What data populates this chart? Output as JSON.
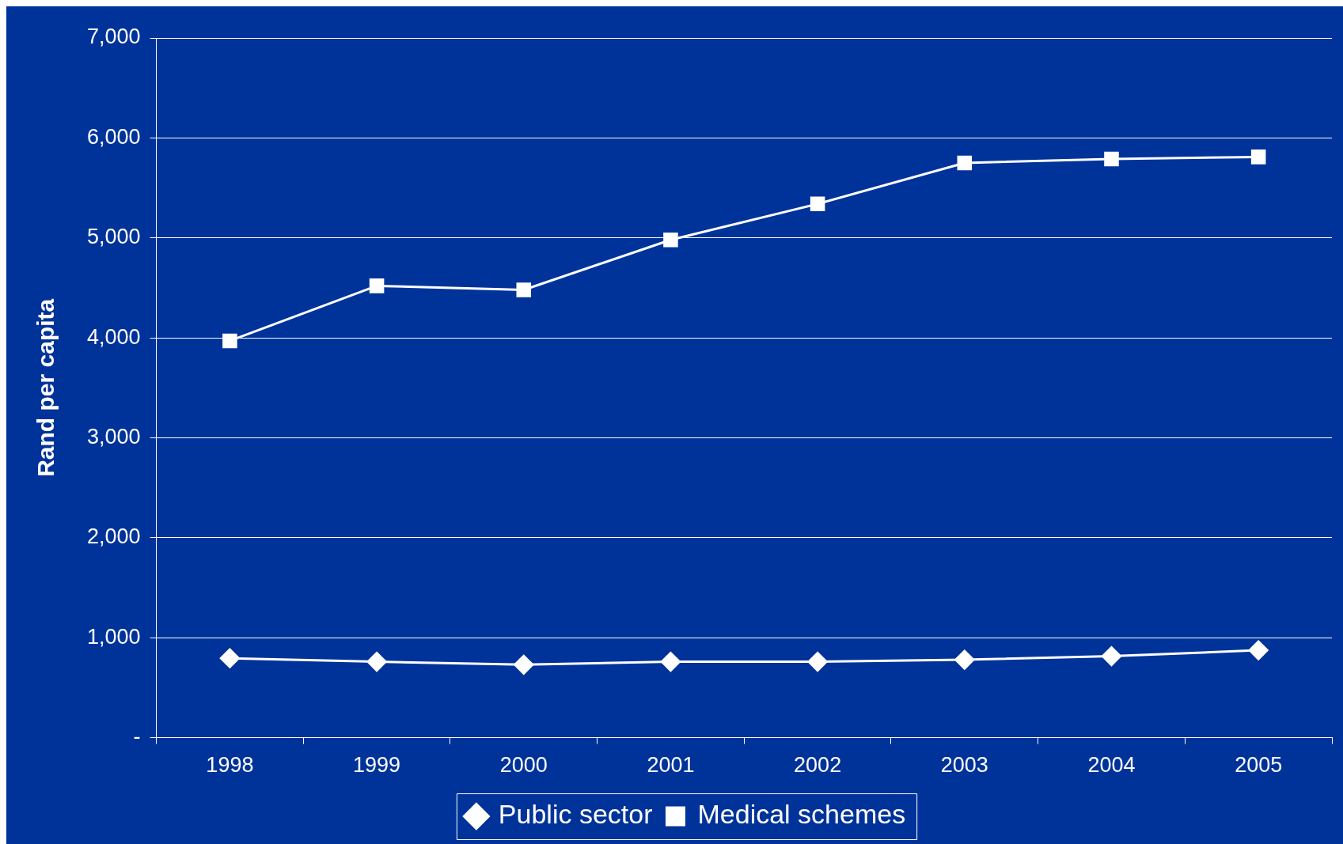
{
  "chart_data": {
    "type": "line",
    "ylabel": "Rand per capita",
    "categories": [
      "1998",
      "1999",
      "2000",
      "2001",
      "2002",
      "2003",
      "2004",
      "2005"
    ],
    "series": [
      {
        "name": "Public sector",
        "color": "#ffffff",
        "marker": "diamond",
        "values": [
          795,
          760,
          730,
          760,
          760,
          780,
          815,
          875
        ]
      },
      {
        "name": "Medical schemes",
        "color": "#ffffff",
        "marker": "square",
        "values": [
          3970,
          4520,
          4480,
          4980,
          5340,
          5750,
          5790,
          5810
        ]
      }
    ],
    "ylim": [
      0,
      7000
    ],
    "yticks": [
      {
        "value": 0,
        "label": "-"
      },
      {
        "value": 1000,
        "label": "1,000"
      },
      {
        "value": 2000,
        "label": "2,000"
      },
      {
        "value": 3000,
        "label": "3,000"
      },
      {
        "value": 4000,
        "label": "4,000"
      },
      {
        "value": 5000,
        "label": "5,000"
      },
      {
        "value": 6000,
        "label": "6,000"
      },
      {
        "value": 7000,
        "label": "7,000"
      }
    ],
    "grid": "y",
    "legend": "bottom",
    "line_style": "solid"
  }
}
